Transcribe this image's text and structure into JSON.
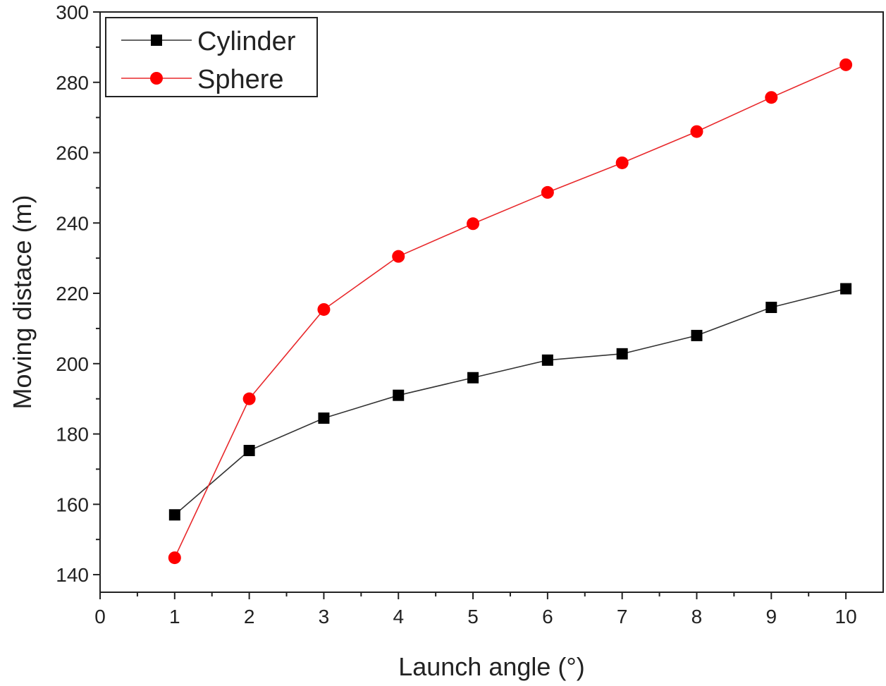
{
  "chart_data": {
    "type": "line",
    "title": "",
    "xlabel": "Launch angle (°)",
    "ylabel": "Moving distace (m)",
    "xlim": [
      0,
      10.5
    ],
    "ylim": [
      135,
      300
    ],
    "xticks": [
      0,
      1,
      2,
      3,
      4,
      5,
      6,
      7,
      8,
      9,
      10
    ],
    "xtick_labels": [
      "0",
      "1",
      "2",
      "3",
      "4",
      "5",
      "6",
      "7",
      "8",
      "9",
      "10"
    ],
    "yticks": [
      140,
      160,
      180,
      200,
      220,
      240,
      260,
      280,
      300
    ],
    "ytick_labels": [
      "140",
      "160",
      "180",
      "200",
      "220",
      "240",
      "260",
      "280",
      "300"
    ],
    "grid": false,
    "legend_position": "top-left",
    "x": [
      1,
      2,
      3,
      4,
      5,
      6,
      7,
      8,
      9,
      10
    ],
    "series": [
      {
        "name": "Cylinder",
        "marker": "square",
        "color": "#000000",
        "line_color": "#333333",
        "values": [
          157,
          175.3,
          184.5,
          191,
          196,
          201,
          202.8,
          208,
          216,
          221.3
        ]
      },
      {
        "name": "Sphere",
        "marker": "circle",
        "color": "#ff0000",
        "line_color": "#e8282b",
        "values": [
          144.8,
          190,
          215.4,
          230.5,
          239.8,
          248.7,
          257.1,
          266,
          275.7,
          285
        ]
      }
    ]
  }
}
